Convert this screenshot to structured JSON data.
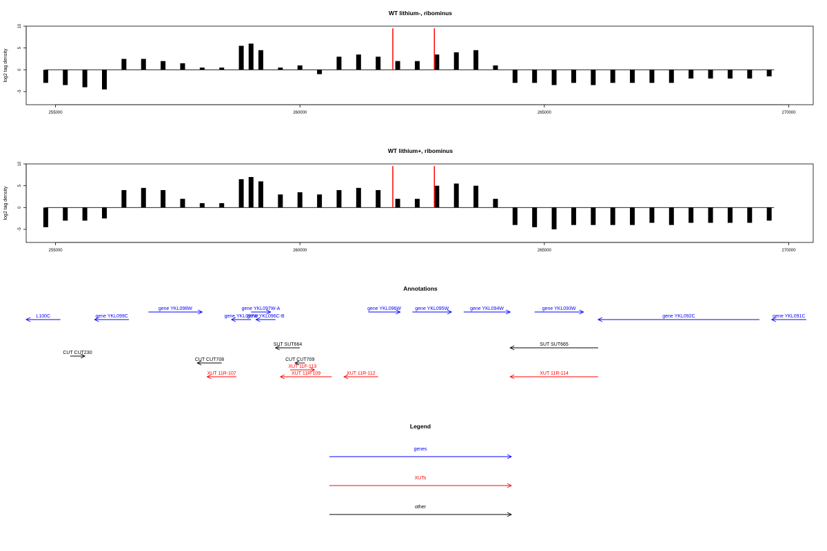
{
  "chart_data": [
    {
      "type": "bar",
      "title": "WT lithium-, ribominus",
      "ylabel": "log2 tag density",
      "xlim": [
        254400,
        270500
      ],
      "ylim": [
        -8,
        10
      ],
      "xticks": [
        255000,
        260000,
        265000,
        270000
      ],
      "yticks": [
        -5,
        0,
        5,
        10
      ],
      "grid": false,
      "highlights": [
        {
          "x": 261900,
          "y": 9.5,
          "color": "#ff0000"
        },
        {
          "x": 262750,
          "y": 9.5,
          "color": "#ff0000"
        }
      ],
      "x": [
        254800,
        255200,
        255600,
        256000,
        256400,
        256800,
        257200,
        257600,
        258000,
        258400,
        258800,
        259000,
        259200,
        259600,
        260000,
        260400,
        260800,
        261200,
        261600,
        262000,
        262400,
        262800,
        263200,
        263600,
        264000,
        264400,
        264800,
        265200,
        265600,
        266000,
        266400,
        266800,
        267200,
        267600,
        268000,
        268400,
        268800,
        269200,
        269600
      ],
      "values": [
        -3,
        -3.5,
        -4,
        -4.5,
        2.5,
        2.5,
        2,
        1.5,
        0.5,
        0.5,
        5.5,
        6,
        4.5,
        0.5,
        1,
        -1,
        3,
        3.5,
        3,
        2,
        2,
        3.5,
        4,
        4.5,
        1,
        -3,
        -3,
        -3.5,
        -3,
        -3.5,
        -3,
        -3,
        -3,
        -3,
        -2,
        -2,
        -2,
        -2,
        -1.5
      ]
    },
    {
      "type": "bar",
      "title": "WT lithium+, ribominus",
      "ylabel": "log2 tag density",
      "xlim": [
        254400,
        270500
      ],
      "ylim": [
        -8,
        10
      ],
      "xticks": [
        255000,
        260000,
        265000,
        270000
      ],
      "yticks": [
        -5,
        0,
        5,
        10
      ],
      "grid": false,
      "highlights": [
        {
          "x": 261900,
          "y": 9.5,
          "color": "#ff0000"
        },
        {
          "x": 262750,
          "y": 9.5,
          "color": "#ff0000"
        }
      ],
      "x": [
        254800,
        255200,
        255600,
        256000,
        256400,
        256800,
        257200,
        257600,
        258000,
        258400,
        258800,
        259000,
        259200,
        259600,
        260000,
        260400,
        260800,
        261200,
        261600,
        262000,
        262400,
        262800,
        263200,
        263600,
        264000,
        264400,
        264800,
        265200,
        265600,
        266000,
        266400,
        266800,
        267200,
        267600,
        268000,
        268400,
        268800,
        269200,
        269600
      ],
      "values": [
        -4.5,
        -3,
        -3,
        -2.5,
        4,
        4.5,
        4,
        2,
        1,
        1,
        6.5,
        7,
        6,
        3,
        3.5,
        3,
        4,
        4.5,
        4,
        2,
        2,
        5,
        5.5,
        5,
        2,
        -4,
        -4.5,
        -5,
        -4,
        -4,
        -4,
        -4,
        -3.5,
        -4,
        -3.5,
        -3.5,
        -3.5,
        -3.5,
        -3
      ]
    }
  ],
  "annotations": {
    "title": "Annotations",
    "xlim": [
      254400,
      270500
    ],
    "features": [
      {
        "label": "L100C",
        "color": "#0000ff",
        "x1": 254400,
        "x2": 255100,
        "strand": "-",
        "row": 1
      },
      {
        "label": "gene YKL099C",
        "color": "#0000ff",
        "x1": 255800,
        "x2": 256500,
        "strand": "-",
        "row": 1
      },
      {
        "label": "gene YKL098W",
        "color": "#0000ff",
        "x1": 256900,
        "x2": 258000,
        "strand": "+",
        "row": 0
      },
      {
        "label": "gene YKL097W-A",
        "color": "#0000ff",
        "x1": 259000,
        "x2": 259400,
        "strand": "+",
        "row": 0
      },
      {
        "label": "gene YKL097W",
        "color": "#0000ff",
        "x1": 258600,
        "x2": 259000,
        "strand": "-",
        "row": 1
      },
      {
        "label": "gene YKL096C-B",
        "color": "#0000ff",
        "x1": 259100,
        "x2": 259500,
        "strand": "-",
        "row": 1
      },
      {
        "label": "gene YKL096W",
        "color": "#0000ff",
        "x1": 261400,
        "x2": 262050,
        "strand": "+",
        "row": 0
      },
      {
        "label": "gene YKL095W",
        "color": "#0000ff",
        "x1": 262300,
        "x2": 263100,
        "strand": "+",
        "row": 0
      },
      {
        "label": "gene YKL094W",
        "color": "#0000ff",
        "x1": 263350,
        "x2": 264300,
        "strand": "+",
        "row": 0
      },
      {
        "label": "gene YKL093W",
        "color": "#0000ff",
        "x1": 264800,
        "x2": 265800,
        "strand": "+",
        "row": 0
      },
      {
        "label": "gene YKL092C",
        "color": "#0000ff",
        "x1": 266100,
        "x2": 269400,
        "strand": "-",
        "row": 1
      },
      {
        "label": "gene YKL091C",
        "color": "#0000ff",
        "x1": 269650,
        "x2": 270500,
        "strand": "-",
        "row": 1
      },
      {
        "label": "SUT SUT664",
        "color": "#000000",
        "x1": 259500,
        "x2": 260000,
        "strand": "-",
        "row": 3
      },
      {
        "label": "SUT SUT665",
        "color": "#000000",
        "x1": 264300,
        "x2": 266100,
        "strand": "-",
        "row": 3
      },
      {
        "label": "CUT CUT230",
        "color": "#000000",
        "x1": 255300,
        "x2": 255600,
        "strand": "+",
        "row": 4
      },
      {
        "label": "CUT CUT708",
        "color": "#000000",
        "x1": 257900,
        "x2": 258400,
        "strand": "-",
        "row": 5
      },
      {
        "label": "CUT CUT709",
        "color": "#000000",
        "x1": 259900,
        "x2": 260100,
        "strand": "-",
        "row": 5
      },
      {
        "label": "XUT 11F-113",
        "color": "#ff0000",
        "x1": 259800,
        "x2": 260300,
        "strand": "+",
        "row": 6
      },
      {
        "label": "XUT 11R-107",
        "color": "#ff0000",
        "x1": 258100,
        "x2": 258700,
        "strand": "-",
        "row": 7
      },
      {
        "label": "XUT 11R-109",
        "color": "#ff0000",
        "x1": 259600,
        "x2": 260650,
        "strand": "-",
        "row": 7
      },
      {
        "label": "XUT 11R-112",
        "color": "#ff0000",
        "x1": 260900,
        "x2": 261600,
        "strand": "-",
        "row": 7
      },
      {
        "label": "XUT 11R-114",
        "color": "#ff0000",
        "x1": 264300,
        "x2": 266100,
        "strand": "-",
        "row": 7
      }
    ]
  },
  "legend": {
    "title": "Legend",
    "items": [
      {
        "label": "genes",
        "color": "#0000ff"
      },
      {
        "label": "XUTs",
        "color": "#ff0000"
      },
      {
        "label": "other",
        "color": "#000000"
      }
    ]
  }
}
